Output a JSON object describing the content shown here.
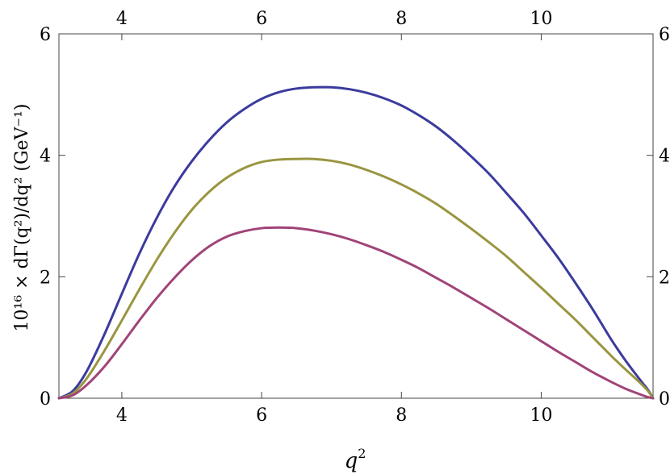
{
  "chart_data": {
    "type": "line",
    "title": "",
    "xlabel": "q",
    "xlabel_sup": "2",
    "ylabel": "10¹⁶ × dΓ(q²)/dq² (GeV⁻¹)",
    "xlim": [
      3.1,
      11.6
    ],
    "ylim": [
      0,
      6
    ],
    "xticks": [
      4,
      6,
      8,
      10
    ],
    "yticks": [
      0,
      2,
      4,
      6
    ],
    "grid": false,
    "series": [
      {
        "color": "#3b3b9e",
        "x": [
          3.1,
          3.3,
          3.5,
          3.75,
          4.0,
          4.25,
          4.5,
          4.75,
          5.0,
          5.25,
          5.5,
          5.75,
          6.0,
          6.25,
          6.5,
          6.75,
          7.0,
          7.25,
          7.5,
          7.75,
          8.0,
          8.25,
          8.5,
          8.75,
          9.0,
          9.25,
          9.5,
          9.75,
          10.0,
          10.25,
          10.5,
          10.75,
          11.0,
          11.2,
          11.35,
          11.45,
          11.52,
          11.57,
          11.6
        ],
        "y": [
          0.0,
          0.12,
          0.45,
          1.05,
          1.72,
          2.38,
          2.97,
          3.48,
          3.9,
          4.25,
          4.54,
          4.76,
          4.93,
          5.04,
          5.1,
          5.12,
          5.12,
          5.09,
          5.03,
          4.94,
          4.82,
          4.66,
          4.47,
          4.24,
          3.98,
          3.7,
          3.38,
          3.05,
          2.68,
          2.3,
          1.88,
          1.44,
          0.97,
          0.63,
          0.4,
          0.25,
          0.15,
          0.06,
          0.0
        ]
      },
      {
        "color": "#9a9540",
        "x": [
          3.1,
          3.3,
          3.5,
          3.75,
          4.0,
          4.25,
          4.5,
          4.75,
          5.0,
          5.25,
          5.5,
          5.75,
          6.0,
          6.25,
          6.5,
          6.75,
          7.0,
          7.25,
          7.5,
          7.75,
          8.0,
          8.25,
          8.5,
          8.75,
          9.0,
          9.25,
          9.5,
          9.75,
          10.0,
          10.25,
          10.5,
          10.75,
          11.0,
          11.2,
          11.4,
          11.52,
          11.6
        ],
        "y": [
          0.0,
          0.08,
          0.33,
          0.78,
          1.28,
          1.79,
          2.28,
          2.72,
          3.1,
          3.4,
          3.63,
          3.79,
          3.89,
          3.93,
          3.94,
          3.94,
          3.91,
          3.85,
          3.76,
          3.65,
          3.52,
          3.37,
          3.2,
          3.0,
          2.79,
          2.57,
          2.34,
          2.08,
          1.82,
          1.55,
          1.28,
          0.99,
          0.7,
          0.48,
          0.27,
          0.13,
          0.0
        ]
      },
      {
        "color": "#a04479",
        "x": [
          3.1,
          3.3,
          3.5,
          3.75,
          4.0,
          4.25,
          4.5,
          4.75,
          5.0,
          5.25,
          5.5,
          5.75,
          6.0,
          6.25,
          6.5,
          6.75,
          7.0,
          7.25,
          7.5,
          7.75,
          8.0,
          8.25,
          8.5,
          8.75,
          9.0,
          9.25,
          9.5,
          9.75,
          10.0,
          10.25,
          10.5,
          10.75,
          11.0,
          11.2,
          11.4,
          11.52,
          11.6
        ],
        "y": [
          0.0,
          0.05,
          0.22,
          0.52,
          0.89,
          1.28,
          1.65,
          1.98,
          2.27,
          2.5,
          2.66,
          2.75,
          2.8,
          2.81,
          2.8,
          2.76,
          2.7,
          2.62,
          2.52,
          2.41,
          2.28,
          2.14,
          1.98,
          1.82,
          1.65,
          1.48,
          1.3,
          1.12,
          0.94,
          0.76,
          0.59,
          0.42,
          0.27,
          0.16,
          0.07,
          0.02,
          0.0
        ]
      }
    ]
  }
}
